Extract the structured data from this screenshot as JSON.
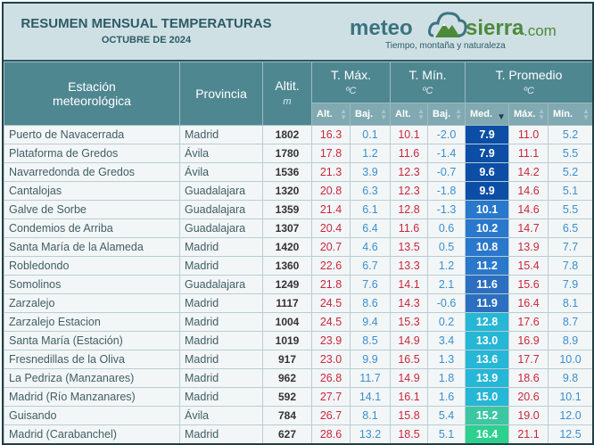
{
  "header": {
    "title": "RESUMEN MENSUAL TEMPERATURAS",
    "subtitle": "OCTUBRE DE 2024"
  },
  "logo": {
    "text1": "meteo",
    "text2": "sierra",
    "text3": ".com",
    "tagline": "Tiempo, montaña y naturaleza"
  },
  "columns": {
    "station": "Estación meteorológica",
    "province": "Provincia",
    "alt": "Altit.",
    "alt_unit": "m",
    "tmax": "T. Máx.",
    "tmin": "T. Mín.",
    "tavg": "T. Promedio",
    "unit": "ºC",
    "sub": [
      "Alt.",
      "Baj.",
      "Alt.",
      "Baj.",
      "Med.",
      "Máx.",
      "Mín."
    ]
  },
  "sort": {
    "column": "Med.",
    "direction": "ascending"
  },
  "rows": [
    [
      "Puerto de Navacerrada",
      "Madrid",
      "1802",
      "16.3",
      "0.1",
      "10.1",
      "-2.0",
      "7.9",
      "11.0",
      "5.2"
    ],
    [
      "Plataforma de Gredos",
      "Ávila",
      "1780",
      "17.8",
      "1.2",
      "11.6",
      "-1.4",
      "7.9",
      "11.1",
      "5.5"
    ],
    [
      "Navarredonda de Gredos",
      "Ávila",
      "1536",
      "21.3",
      "3.9",
      "12.3",
      "-0.7",
      "9.6",
      "14.2",
      "5.2"
    ],
    [
      "Cantalojas",
      "Guadalajara",
      "1320",
      "20.8",
      "6.3",
      "12.3",
      "-1.8",
      "9.9",
      "14.6",
      "5.1"
    ],
    [
      "Galve de Sorbe",
      "Guadalajara",
      "1359",
      "21.4",
      "6.1",
      "12.8",
      "-1.3",
      "10.1",
      "14.6",
      "5.5"
    ],
    [
      "Condemios de Arriba",
      "Guadalajara",
      "1307",
      "20.4",
      "6.4",
      "11.6",
      "0.6",
      "10.2",
      "14.7",
      "6.5"
    ],
    [
      "Santa María de la Alameda",
      "Madrid",
      "1420",
      "20.7",
      "4.6",
      "13.5",
      "0.5",
      "10.8",
      "13.9",
      "7.7"
    ],
    [
      "Robledondo",
      "Madrid",
      "1360",
      "22.6",
      "6.7",
      "13.3",
      "1.2",
      "11.2",
      "15.4",
      "7.8"
    ],
    [
      "Somolinos",
      "Guadalajara",
      "1249",
      "21.8",
      "7.6",
      "14.1",
      "2.1",
      "11.6",
      "15.6",
      "7.9"
    ],
    [
      "Zarzalejo",
      "Madrid",
      "1117",
      "24.5",
      "8.6",
      "14.3",
      "-0.6",
      "11.9",
      "16.4",
      "8.1"
    ],
    [
      "Zarzalejo Estacion",
      "Madrid",
      "1004",
      "24.5",
      "9.4",
      "15.3",
      "0.2",
      "12.8",
      "17.6",
      "8.7"
    ],
    [
      "Santa María (Estación)",
      "Madrid",
      "1019",
      "23.9",
      "8.5",
      "14.9",
      "3.4",
      "13.0",
      "16.9",
      "8.9"
    ],
    [
      "Fresnedillas de la Oliva",
      "Madrid",
      "917",
      "23.0",
      "9.9",
      "16.5",
      "1.3",
      "13.6",
      "17.7",
      "10.0"
    ],
    [
      "La Pedriza (Manzanares)",
      "Madrid",
      "962",
      "26.8",
      "11.7",
      "14.9",
      "1.8",
      "13.9",
      "18.6",
      "9.8"
    ],
    [
      "Madrid (Río Manzanares)",
      "Madrid",
      "592",
      "27.7",
      "14.1",
      "16.1",
      "1.6",
      "15.0",
      "20.6",
      "10.1"
    ],
    [
      "Guisando",
      "Ávila",
      "784",
      "26.7",
      "8.1",
      "15.8",
      "5.4",
      "15.2",
      "19.0",
      "12.0"
    ],
    [
      "Madrid (Carabanchel)",
      "Madrid",
      "627",
      "28.6",
      "13.2",
      "18.5",
      "5.1",
      "16.4",
      "21.1",
      "12.5"
    ]
  ],
  "colors": {
    "header": "#4f8791",
    "max": "#c8283c",
    "min": "#3a8fd0",
    "med_scale": [
      "#0c4ea6",
      "#2a78cc",
      "#2c6fc0",
      "#26b6d6",
      "#3cc7a2",
      "#2ed08f"
    ]
  }
}
